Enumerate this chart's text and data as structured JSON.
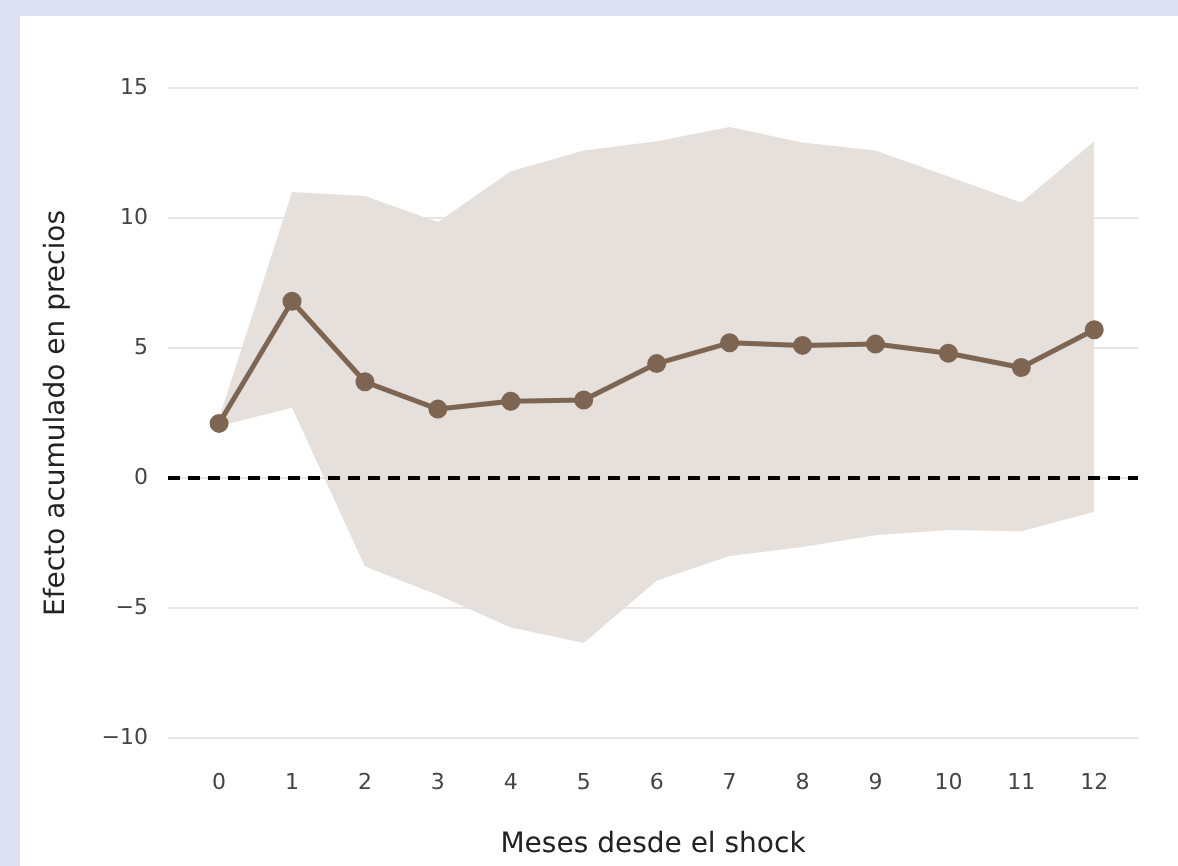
{
  "chart_data": {
    "type": "line",
    "xlabel": "Meses desde el shock",
    "ylabel": "Efecto acumulado en precios",
    "x": [
      0,
      1,
      2,
      3,
      4,
      5,
      6,
      7,
      8,
      9,
      10,
      11,
      12
    ],
    "series": [
      {
        "color": "#7d6552",
        "values": [
          2.1,
          6.8,
          3.7,
          2.65,
          2.95,
          3.0,
          4.4,
          5.2,
          5.1,
          5.15,
          4.8,
          4.25,
          5.7
        ],
        "lower": [
          2.0,
          2.7,
          -3.4,
          -4.5,
          -5.75,
          -6.35,
          -3.95,
          -3.0,
          -2.65,
          -2.2,
          -2.0,
          -2.05,
          -1.3
        ],
        "upper": [
          2.3,
          11.0,
          10.85,
          9.85,
          11.8,
          12.6,
          12.95,
          13.5,
          12.9,
          12.6,
          11.6,
          10.6,
          12.95
        ]
      }
    ],
    "xlim": [
      -0.7,
      12.6
    ],
    "xticks": [
      0,
      1,
      2,
      3,
      4,
      5,
      6,
      7,
      8,
      9,
      10,
      11,
      12
    ],
    "ylim": [
      -10,
      15
    ],
    "yticks": [
      {
        "value": -10,
        "label": "−10"
      },
      {
        "value": -5,
        "label": "−5"
      },
      0,
      5,
      10,
      15
    ],
    "ref_lines": [
      {
        "axis": "y",
        "value": 0,
        "color": "#000000",
        "line_style": "dashed"
      }
    ],
    "grid": "y",
    "legend": false,
    "marker": "circle",
    "line_style": "solid"
  }
}
